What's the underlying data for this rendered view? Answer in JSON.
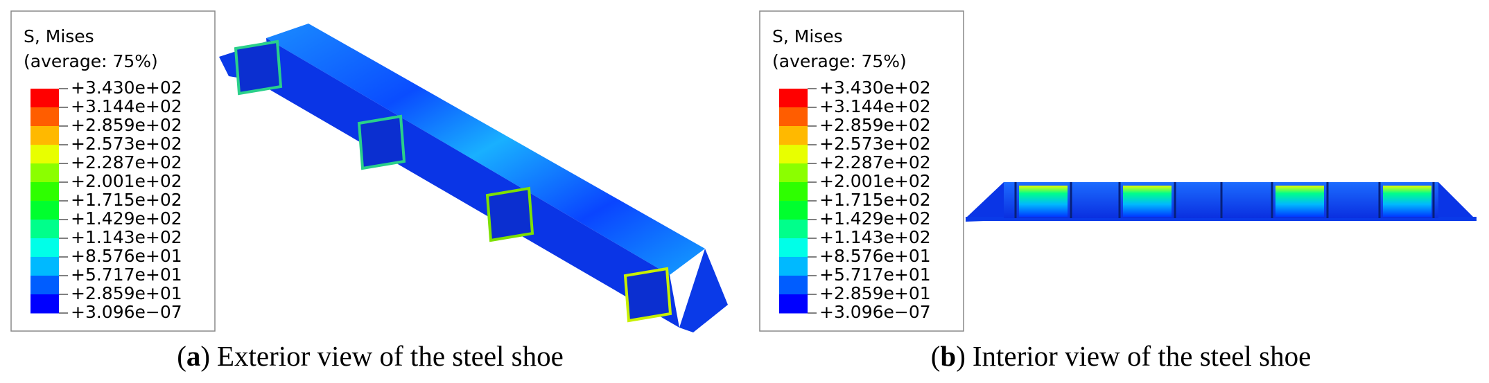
{
  "panels": [
    {
      "legend": {
        "title": "S, Mises",
        "subtitle": "(average: 75%)",
        "labels": [
          "+3.430e+02",
          "+3.144e+02",
          "+2.859e+02",
          "+2.573e+02",
          "+2.287e+02",
          "+2.001e+02",
          "+1.715e+02",
          "+1.429e+02",
          "+1.143e+02",
          "+8.576e+01",
          "+5.717e+01",
          "+2.859e+01",
          "+3.096e−07"
        ]
      },
      "caption": {
        "parts": [
          "(",
          "a",
          ")"
        ],
        "text": "Exterior view of the steel shoe"
      }
    },
    {
      "legend": {
        "title": "S, Mises",
        "subtitle": "(average: 75%)",
        "labels": [
          "+3.430e+02",
          "+3.144e+02",
          "+2.859e+02",
          "+2.573e+02",
          "+2.287e+02",
          "+2.001e+02",
          "+1.715e+02",
          "+1.429e+02",
          "+1.143e+02",
          "+8.576e+01",
          "+5.717e+01",
          "+2.859e+01",
          "+3.096e−07"
        ]
      },
      "caption": {
        "parts": [
          "(",
          "b",
          ")"
        ],
        "text": "Interior view of the steel shoe"
      }
    }
  ]
}
